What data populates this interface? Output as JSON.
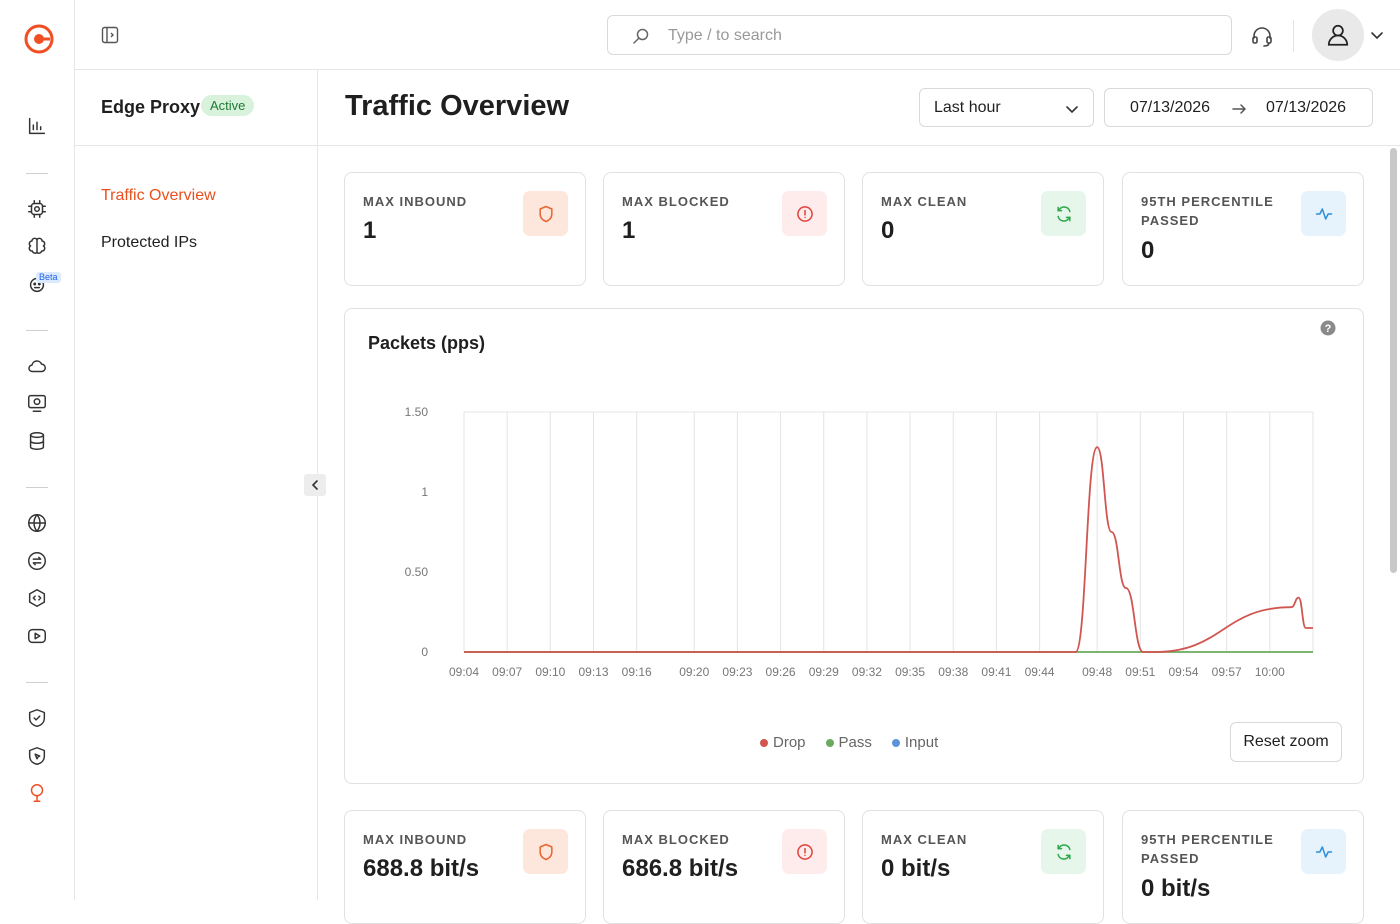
{
  "search": {
    "placeholder": "Type / to search"
  },
  "rail": {
    "beta_badge": "Beta"
  },
  "service": {
    "name": "Edge Proxy",
    "status": "Active"
  },
  "nav": [
    {
      "label": "Traffic Overview",
      "active": true
    },
    {
      "label": "Protected IPs",
      "active": false
    }
  ],
  "page": {
    "title": "Traffic Overview"
  },
  "filters": {
    "range": "Last hour",
    "start_date": "07/13/2026",
    "end_date": "07/13/2026"
  },
  "cards_top": [
    {
      "label": "MAX INBOUND",
      "value": "1",
      "icon": "shield-icon",
      "color": "#e8652f",
      "bg": "#fde6dc"
    },
    {
      "label": "MAX BLOCKED",
      "value": "1",
      "icon": "alert-circle-icon",
      "color": "#e0413a",
      "bg": "#fdeceb"
    },
    {
      "label": "MAX CLEAN",
      "value": "0",
      "icon": "refresh-icon",
      "color": "#2aa84a",
      "bg": "#e6f6ea"
    },
    {
      "label": "95TH PERCENTILE PASSED",
      "value": "0",
      "icon": "activity-icon",
      "color": "#2e8fd6",
      "bg": "#e6f3fc"
    }
  ],
  "cards_bottom": [
    {
      "label": "MAX INBOUND",
      "value": "688.8 bit/s",
      "icon": "shield-icon",
      "color": "#e8652f",
      "bg": "#fde6dc"
    },
    {
      "label": "MAX BLOCKED",
      "value": "686.8 bit/s",
      "icon": "alert-circle-icon",
      "color": "#e0413a",
      "bg": "#fdeceb"
    },
    {
      "label": "MAX CLEAN",
      "value": "0 bit/s",
      "icon": "refresh-icon",
      "color": "#2aa84a",
      "bg": "#e6f6ea"
    },
    {
      "label": "95TH PERCENTILE PASSED",
      "value": "0 bit/s",
      "icon": "activity-icon",
      "color": "#2e8fd6",
      "bg": "#e6f3fc"
    }
  ],
  "chart": {
    "reset_label": "Reset zoom"
  },
  "chart_data": {
    "type": "line",
    "title": "Packets (pps)",
    "y_ticks": [
      "0",
      "0.50",
      "1",
      "1.50"
    ],
    "ylim": [
      0,
      1.5
    ],
    "x_ticks": [
      "09:04",
      "09:07",
      "09:10",
      "09:13",
      "09:16",
      "09:20",
      "09:23",
      "09:26",
      "09:29",
      "09:32",
      "09:35",
      "09:38",
      "09:41",
      "09:44",
      "09:48",
      "09:51",
      "09:54",
      "09:57",
      "10:00"
    ],
    "x_range_minutes": [
      4,
      63
    ],
    "series": [
      {
        "name": "Drop",
        "color": "#d0564f",
        "x": [
          4,
          46.5,
          48,
          49,
          50,
          51.2,
          52,
          61.5,
          62,
          62.5,
          63
        ],
        "y": [
          0,
          0,
          1.28,
          0.75,
          0.4,
          0,
          0,
          0.28,
          0.34,
          0.15,
          0.15
        ]
      },
      {
        "name": "Pass",
        "color": "#6aaa5c",
        "x": [
          4,
          63
        ],
        "y": [
          0,
          0
        ]
      },
      {
        "name": "Input",
        "color": "#5b94d8",
        "x": [],
        "y": []
      }
    ],
    "legend": "bottom-center",
    "grid": true
  }
}
